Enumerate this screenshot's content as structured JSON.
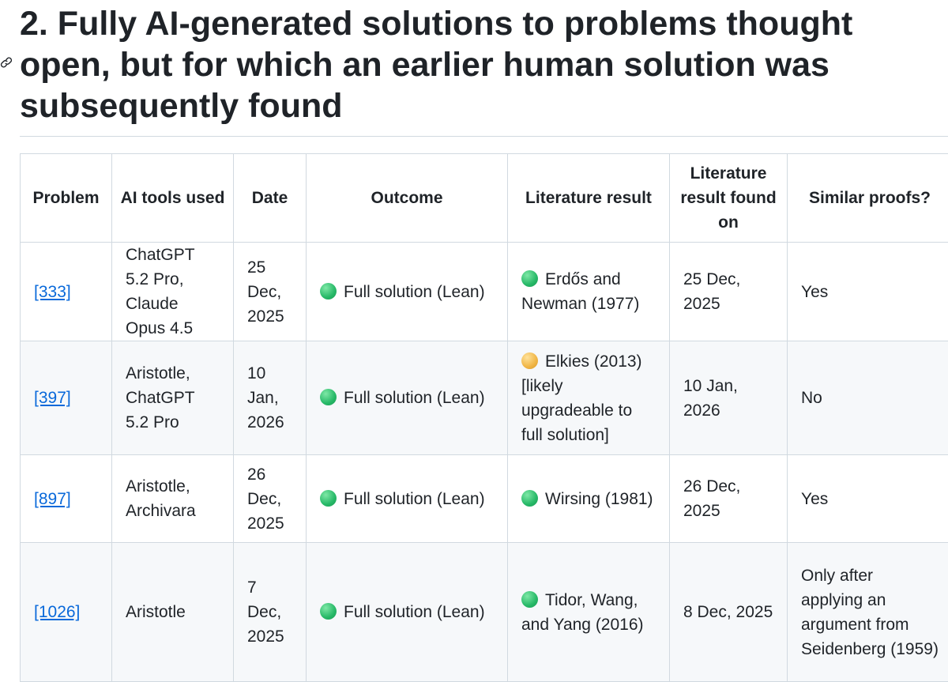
{
  "section": {
    "title": "2. Fully AI-generated solutions to problems thought open, but for which an earlier human solution was subsequently found"
  },
  "table": {
    "headers": {
      "problem": "Problem",
      "tools": "AI tools used",
      "date": "Date",
      "outcome": "Outcome",
      "literature": "Literature result",
      "found_on": "Literature result found on",
      "similar": "Similar proofs?"
    },
    "rows": [
      {
        "problem": "[333]",
        "tools": "ChatGPT 5.2 Pro, Claude Opus 4.5",
        "date": "25 Dec, 2025",
        "outcome_status": "green",
        "outcome": "Full solution (Lean)",
        "literature_status": "green",
        "literature": "Erdős and Newman (1977)",
        "found_on": "25 Dec, 2025",
        "similar": "Yes"
      },
      {
        "problem": "[397]",
        "tools": "Aristotle, ChatGPT 5.2 Pro",
        "date": "10 Jan, 2026",
        "outcome_status": "green",
        "outcome": "Full solution (Lean)",
        "literature_status": "orange",
        "literature": "Elkies (2013) [likely upgradeable to full solution]",
        "found_on": "10 Jan, 2026",
        "similar": "No"
      },
      {
        "problem": "[897]",
        "tools": "Aristotle, Archivara",
        "date": "26 Dec, 2025",
        "outcome_status": "green",
        "outcome": "Full solution (Lean)",
        "literature_status": "green",
        "literature": "Wirsing (1981)",
        "found_on": "26 Dec, 2025",
        "similar": "Yes"
      },
      {
        "problem": "[1026]",
        "tools": "Aristotle",
        "date": "7 Dec, 2025",
        "outcome_status": "green",
        "outcome": "Full solution (Lean)",
        "literature_status": "green",
        "literature": "Tidor, Wang, and Yang (2016)",
        "found_on": "8 Dec, 2025",
        "similar": "Only after applying an argument from Seidenberg (1959)"
      }
    ]
  },
  "colors": {
    "link": "#0969da",
    "status_green": "#26b867",
    "status_orange": "#f0b545",
    "border": "#d1d9e0"
  }
}
